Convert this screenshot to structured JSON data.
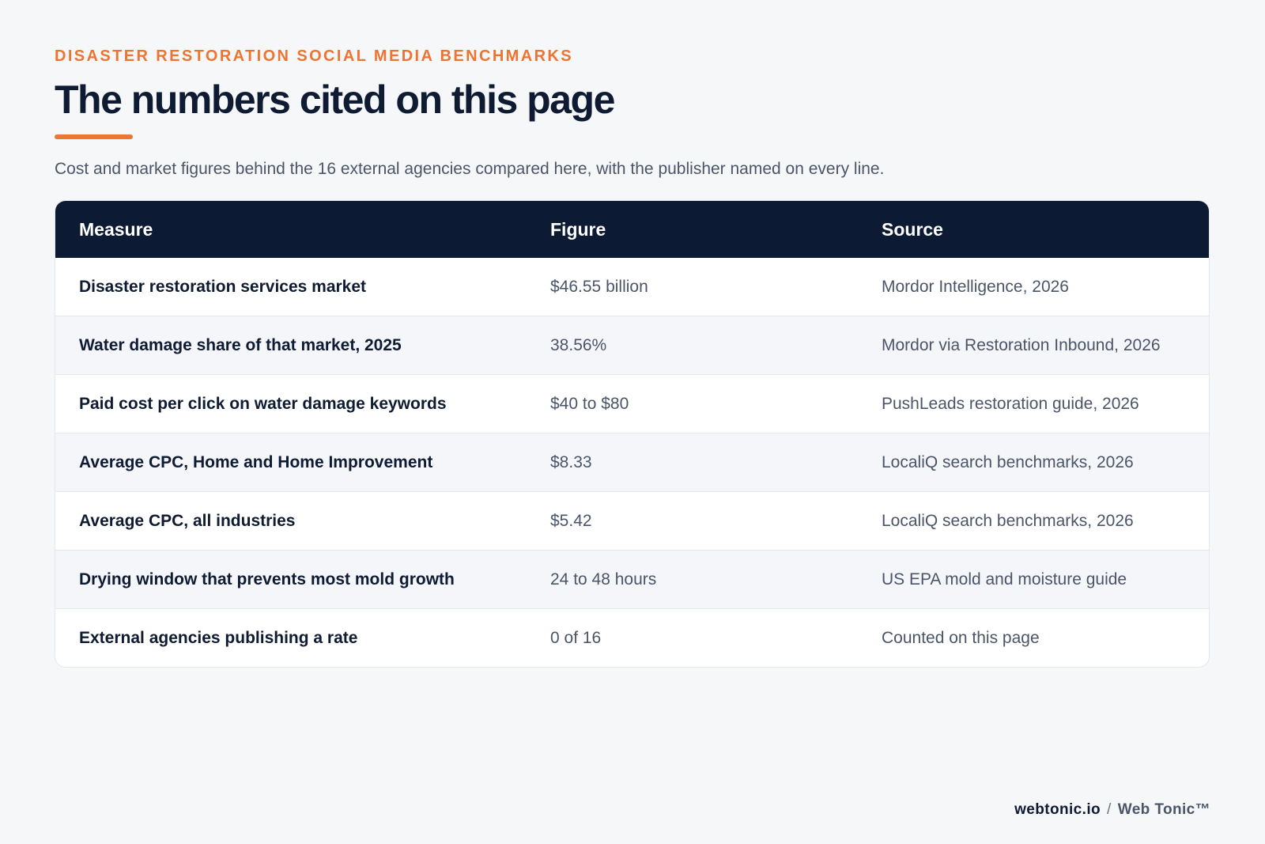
{
  "header": {
    "eyebrow": "DISASTER RESTORATION SOCIAL MEDIA BENCHMARKS",
    "title": "The numbers cited on this page",
    "subtitle": "Cost and market figures behind the 16 external agencies compared here, with the publisher named on every line."
  },
  "table": {
    "columns": [
      "Measure",
      "Figure",
      "Source"
    ],
    "rows": [
      {
        "measure": "Disaster restoration services market",
        "figure": "$46.55 billion",
        "source": "Mordor Intelligence, 2026"
      },
      {
        "measure": "Water damage share of that market, 2025",
        "figure": "38.56%",
        "source": "Mordor via Restoration Inbound, 2026"
      },
      {
        "measure": "Paid cost per click on water damage keywords",
        "figure": "$40 to $80",
        "source": "PushLeads restoration guide, 2026"
      },
      {
        "measure": "Average CPC, Home and Home Improvement",
        "figure": "$8.33",
        "source": "LocaliQ search benchmarks, 2026"
      },
      {
        "measure": "Average CPC, all industries",
        "figure": "$5.42",
        "source": "LocaliQ search benchmarks, 2026"
      },
      {
        "measure": "Drying window that prevents most mold growth",
        "figure": "24 to 48 hours",
        "source": "US EPA mold and moisture guide"
      },
      {
        "measure": "External agencies publishing a rate",
        "figure": "0 of 16",
        "source": "Counted on this page"
      }
    ]
  },
  "footer": {
    "site": "webtonic.io",
    "separator": "/",
    "brand": "Web Tonic™"
  },
  "colors": {
    "accent": "#ee7432",
    "header_bg": "#0c1a33",
    "page_bg": "#f6f7f9"
  }
}
